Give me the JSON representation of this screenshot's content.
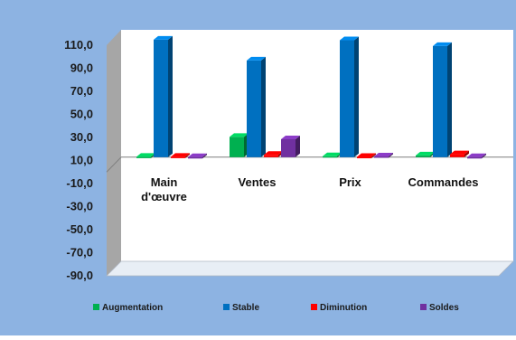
{
  "chart_data": {
    "type": "bar",
    "categories": [
      "Main\nd'œuvre",
      "Ventes",
      "Prix",
      "Commandes"
    ],
    "series": [
      {
        "name": "Augmentation",
        "values": [
          0.3,
          17.5,
          0.8,
          1.5
        ]
      },
      {
        "name": "Stable",
        "values": [
          101.5,
          83.5,
          101.0,
          96.0
        ]
      },
      {
        "name": "Diminution",
        "values": [
          0.3,
          2.0,
          0.2,
          2.5
        ]
      },
      {
        "name": "Soldes",
        "values": [
          0.0,
          15.5,
          0.6,
          -1.0
        ]
      }
    ],
    "ylim": [
      -90,
      110
    ],
    "ytick_labels": [
      "110,0",
      "90,0",
      "70,0",
      "50,0",
      "30,0",
      "10,0",
      "-10,0",
      "-30,0",
      "-50,0",
      "-70,0",
      "-90,0"
    ],
    "ytick_values": [
      110,
      90,
      70,
      50,
      30,
      10,
      -10,
      -30,
      -50,
      -70,
      -90
    ],
    "title": "",
    "xlabel": "",
    "ylabel": "",
    "legend_position": "bottom",
    "colors": {
      "background": "#8db3e2",
      "plot_area": "#ffffff",
      "wall_side": "#a6a6a6",
      "series": [
        "#00b050",
        "#0070c0",
        "#ff0000",
        "#7030a0"
      ]
    }
  }
}
